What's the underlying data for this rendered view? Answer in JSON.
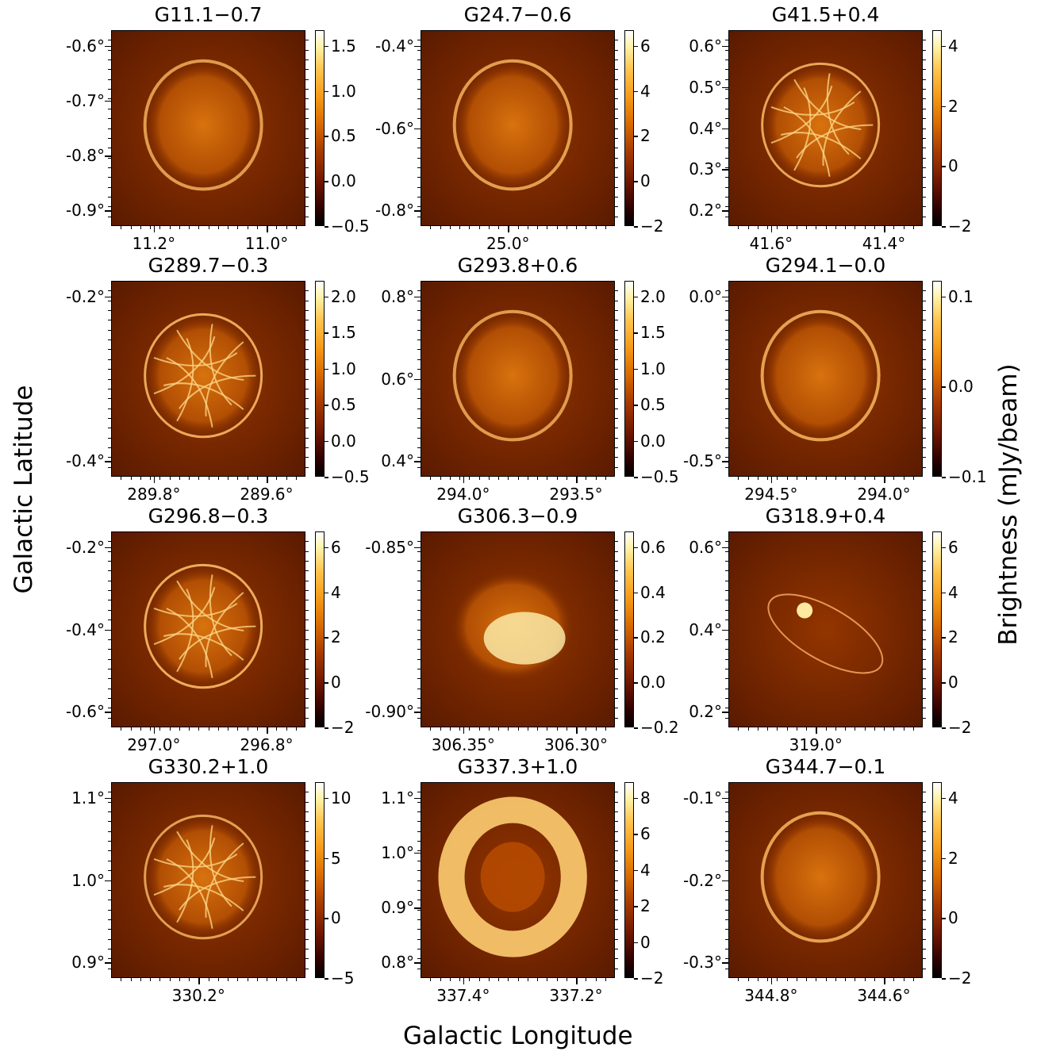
{
  "axes": {
    "xlabel": "Galactic Longitude",
    "ylabel": "Galactic Latitude",
    "cbar_label": "Brightness (mJy/beam)"
  },
  "colors": {
    "map_low": "#000000",
    "map_mid": "#b04400",
    "map_high": "#ffffff",
    "background": "#7a2a00"
  },
  "panels": [
    {
      "title": "G11.1−0.7",
      "shape": "shell",
      "level": 0.55,
      "yticks": [
        "-0.6°",
        "-0.7°",
        "-0.8°",
        "-0.9°"
      ],
      "xticks": [
        "11.2°",
        "11.0°"
      ],
      "cbar": [
        "1.5",
        "1.0",
        "0.5",
        "0.0",
        "−0.5"
      ]
    },
    {
      "title": "G24.7−0.6",
      "shape": "shell",
      "level": 0.6,
      "yticks": [
        "-0.4°",
        "-0.6°",
        "-0.8°"
      ],
      "xticks": [
        "25.0°"
      ],
      "cbar": [
        "6",
        "4",
        "2",
        "0",
        "−2"
      ]
    },
    {
      "title": "G41.5+0.4",
      "shape": "filament",
      "level": 0.7,
      "yticks": [
        "0.6°",
        "0.5°",
        "0.4°",
        "0.3°",
        "0.2°"
      ],
      "xticks": [
        "41.6°",
        "41.4°"
      ],
      "cbar": [
        "4",
        "2",
        "0",
        "−2"
      ]
    },
    {
      "title": "G289.7−0.3",
      "shape": "filament",
      "level": 0.75,
      "yticks": [
        "-0.2°",
        "-0.4°"
      ],
      "xticks": [
        "289.8°",
        "289.6°"
      ],
      "cbar": [
        "2.0",
        "1.5",
        "1.0",
        "0.5",
        "0.0",
        "−0.5"
      ]
    },
    {
      "title": "G293.8+0.6",
      "shape": "shell",
      "level": 0.55,
      "yticks": [
        "0.8°",
        "0.6°",
        "0.4°"
      ],
      "xticks": [
        "294.0°",
        "293.5°"
      ],
      "cbar": [
        "2.0",
        "1.5",
        "1.0",
        "0.5",
        "0.0",
        "−0.5"
      ]
    },
    {
      "title": "G294.1−0.0",
      "shape": "shell",
      "level": 0.65,
      "yticks": [
        "0.0°",
        "-0.5°"
      ],
      "xticks": [
        "294.5°",
        "294.0°"
      ],
      "cbar": [
        "0.1",
        "0.0",
        "−0.1"
      ]
    },
    {
      "title": "G296.8−0.3",
      "shape": "filament",
      "level": 0.8,
      "yticks": [
        "-0.2°",
        "-0.4°",
        "-0.6°"
      ],
      "xticks": [
        "297.0°",
        "296.8°"
      ],
      "cbar": [
        "6",
        "4",
        "2",
        "0",
        "−2"
      ]
    },
    {
      "title": "G306.3−0.9",
      "shape": "blob",
      "level": 0.85,
      "yticks": [
        "-0.85°",
        "-0.90°"
      ],
      "xticks": [
        "306.35°",
        "306.30°"
      ],
      "cbar": [
        "0.6",
        "0.4",
        "0.2",
        "0.0",
        "−0.2"
      ]
    },
    {
      "title": "G318.9+0.4",
      "shape": "thin",
      "level": 0.5,
      "yticks": [
        "0.6°",
        "0.4°",
        "0.2°"
      ],
      "xticks": [
        "319.0°"
      ],
      "cbar": [
        "6",
        "4",
        "2",
        "0",
        "−2"
      ]
    },
    {
      "title": "G330.2+1.0",
      "shape": "filament",
      "level": 0.6,
      "yticks": [
        "1.1°",
        "1.0°",
        "0.9°"
      ],
      "xticks": [
        "330.2°"
      ],
      "cbar": [
        "10",
        "5",
        "0",
        "−5"
      ]
    },
    {
      "title": "G337.3+1.0",
      "shape": "ring",
      "level": 0.85,
      "yticks": [
        "1.1°",
        "1.0°",
        "0.9°",
        "0.8°"
      ],
      "xticks": [
        "337.4°",
        "337.2°"
      ],
      "cbar": [
        "8",
        "6",
        "4",
        "2",
        "0",
        "−2"
      ]
    },
    {
      "title": "G344.7−0.1",
      "shape": "shell",
      "level": 0.65,
      "yticks": [
        "-0.1°",
        "-0.2°",
        "-0.3°"
      ],
      "xticks": [
        "344.8°",
        "344.6°"
      ],
      "cbar": [
        "4",
        "2",
        "0",
        "−2"
      ]
    }
  ]
}
